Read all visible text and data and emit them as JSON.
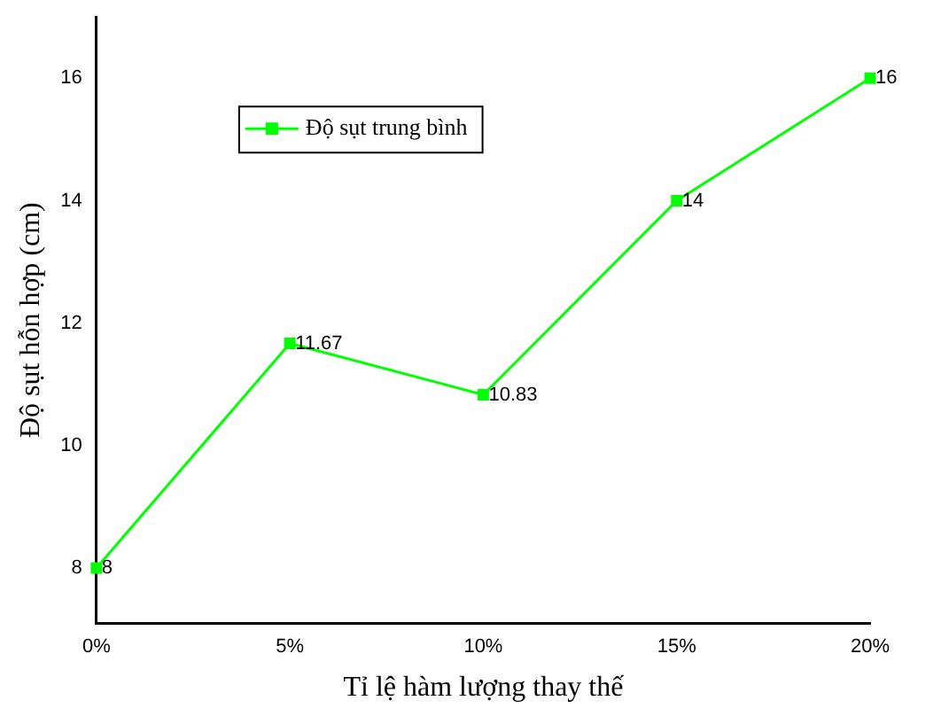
{
  "chart_data": {
    "type": "line",
    "xlabel": "Tỉ lệ hàm lượng thay thế",
    "ylabel": "Độ sụt hỗn hợp (cm)",
    "categories": [
      "0%",
      "5%",
      "10%",
      "15%",
      "20%"
    ],
    "series": [
      {
        "name": "Độ sụt trung bình",
        "color": "#00ff00",
        "values": [
          8,
          11.67,
          10.83,
          14,
          16
        ]
      }
    ],
    "ylim": [
      7.1,
      17
    ],
    "yticks": [
      8,
      10,
      12,
      14,
      16
    ],
    "grid": false,
    "legend": "top left",
    "marker": "square",
    "line_style": "solid",
    "data_labels": true
  }
}
